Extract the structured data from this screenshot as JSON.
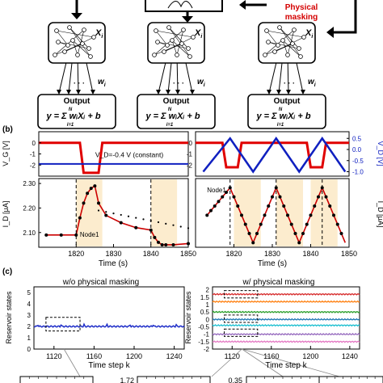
{
  "panel_a": {
    "state_label": "X",
    "state_sub": "i",
    "weight_label": "w",
    "weight_sub": "i",
    "dots": "· · ·",
    "output_title": "Output",
    "output_formula": "y = Σ wᵢXᵢ + b",
    "formula_sum_top": "N",
    "formula_sum_bottom": "i=1",
    "masking_label_line1": "Physical",
    "masking_label_line2": "masking",
    "masking_color": "#d40000"
  },
  "panel_b": {
    "label": "(b)",
    "vg_label": "V_G [V]",
    "vd_label": "V_D [V]",
    "id_label": "I_D [μA]",
    "time_label": "Time (s)",
    "vd_constant_text": "V_D=-0.4 V (constant)",
    "node_label": "Node1",
    "vg_ticks": [
      "0",
      "-1",
      "-2"
    ],
    "vd_ticks": [
      "0.5",
      "0.0",
      "-0.5",
      "-1.0"
    ],
    "id_ticks": [
      "2.30",
      "2.20",
      "2.10"
    ],
    "left_time_ticks": [
      "1820",
      "1830",
      "1840",
      "1850"
    ],
    "right_time_ticks": [
      "1820",
      "1830",
      "1840",
      "1850"
    ],
    "vg_color": "#e00000",
    "vd_color": "#1020c0",
    "fit_color": "#cc0000",
    "shade_color": "#fbe7c2"
  },
  "panel_c": {
    "label": "(c)",
    "left_title": "w/o physical masking",
    "right_title": "w/ physical masking",
    "y_label": "Reservoir states",
    "x_label": "Time step k",
    "left_y_ticks": [
      "5",
      "4",
      "3",
      "2",
      "1",
      "0"
    ],
    "right_y_ticks": [
      "2",
      "1.5",
      "1",
      "0.5",
      "0",
      "-0.5",
      "-1",
      "-1.5",
      "-2"
    ],
    "left_x_ticks": [
      "1120",
      "1160",
      "1200",
      "1240"
    ],
    "right_x_ticks": [
      "1120",
      "1160",
      "1200",
      "1240"
    ],
    "line_color": "#1f2ec8",
    "trace_colors": [
      "#d62728",
      "#ff7f0e",
      "#2ca02c",
      "#1f77b4",
      "#17becf",
      "#9467bd",
      "#e377c2"
    ],
    "bottom_fragments": [
      "1.72",
      "0.35"
    ]
  },
  "chart_data": [
    {
      "type": "line",
      "title": "",
      "xlabel": "Time (s)",
      "ylabel": "V_G [V]",
      "xlim": [
        1810,
        1850
      ],
      "ylim": [
        -3,
        1
      ],
      "series": [
        {
          "x": [
            1810,
            1821,
            1822,
            1826,
            1827,
            1850
          ],
          "values": [
            0,
            0,
            -2.7,
            -2.7,
            0,
            0
          ]
        }
      ]
    },
    {
      "type": "line",
      "title": "",
      "xlabel": "Time (s)",
      "ylabel": "I_D [μA]",
      "xlim": [
        1810,
        1850
      ],
      "ylim": [
        2.04,
        2.32
      ],
      "series": [
        {
          "x": [
            1812,
            1816,
            1820,
            1821,
            1822,
            1823,
            1824,
            1825,
            1826,
            1828,
            1832,
            1836,
            1840,
            1841,
            1842,
            1843,
            1844,
            1846,
            1850
          ],
          "values": [
            2.09,
            2.09,
            2.09,
            2.16,
            2.22,
            2.26,
            2.28,
            2.29,
            2.22,
            2.17,
            2.14,
            2.12,
            2.11,
            2.08,
            2.06,
            2.05,
            2.05,
            2.05,
            2.055
          ]
        }
      ]
    },
    {
      "type": "line",
      "title": "",
      "xlabel": "Time (s)",
      "ylabel": "V_D [V]",
      "xlim": [
        1810,
        1850
      ],
      "ylim": [
        -1.2,
        0.8
      ],
      "series": [
        {
          "x": [
            1812,
            1819,
            1825,
            1831,
            1837,
            1843,
            1849
          ],
          "values": [
            -1.0,
            0.5,
            -1.0,
            0.5,
            -1.0,
            0.5,
            -1.0
          ]
        }
      ]
    },
    {
      "type": "line",
      "title": "",
      "xlabel": "Time (s)",
      "ylabel": "I_D [μA]",
      "xlim": [
        1810,
        1850
      ],
      "ylim": [
        0,
        15
      ],
      "series": [
        {
          "x": [
            1813,
            1819,
            1825,
            1831,
            1837,
            1843,
            1849
          ],
          "values": [
            7,
            13,
            1,
            13,
            1,
            13,
            1
          ]
        }
      ]
    },
    {
      "type": "line",
      "title": "w/o physical masking",
      "xlabel": "Time step k",
      "ylabel": "Reservoir states",
      "xlim": [
        1100,
        1250
      ],
      "ylim": [
        0,
        5.5
      ],
      "series": [
        {
          "x": [
            1100,
            1150,
            1200,
            1250
          ],
          "values": [
            2.0,
            2.05,
            2.0,
            2.02
          ]
        }
      ]
    },
    {
      "type": "line",
      "title": "w/ physical masking",
      "xlabel": "Time step k",
      "ylabel": "Reservoir states",
      "xlim": [
        1100,
        1250
      ],
      "ylim": [
        -2,
        2
      ],
      "series": [
        {
          "x": [
            1100,
            1250
          ],
          "values": [
            1.7,
            1.7
          ]
        },
        {
          "x": [
            1100,
            1250
          ],
          "values": [
            1.2,
            1.2
          ]
        },
        {
          "x": [
            1100,
            1250
          ],
          "values": [
            0.5,
            0.5
          ]
        },
        {
          "x": [
            1100,
            1250
          ],
          "values": [
            0.0,
            0.0
          ]
        },
        {
          "x": [
            1100,
            1250
          ],
          "values": [
            -0.4,
            -0.4
          ]
        },
        {
          "x": [
            1100,
            1250
          ],
          "values": [
            -1.0,
            -1.0
          ]
        },
        {
          "x": [
            1100,
            1250
          ],
          "values": [
            -1.5,
            -1.5
          ]
        }
      ]
    }
  ]
}
